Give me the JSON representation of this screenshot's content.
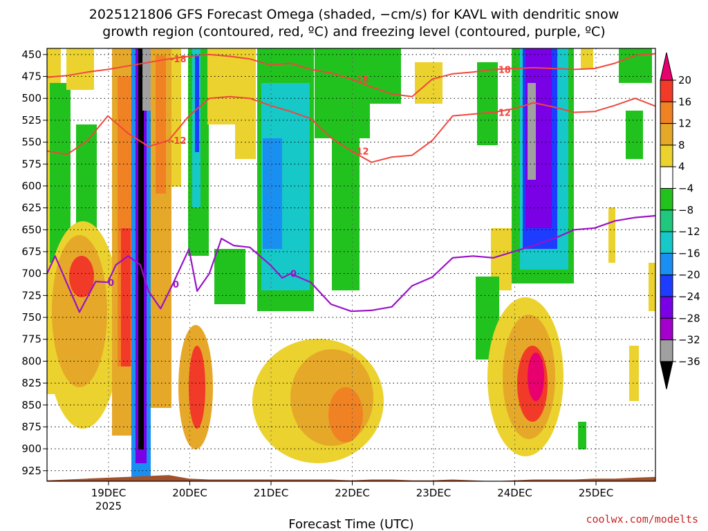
{
  "chart_data": {
    "type": "heatmap",
    "title": "2025121806 GFS Forecast Omega (shaded, −cm/s) for KAVL with dendritic snow",
    "subtitle": "growth region (contoured, red, ºC) and freezing level (contoured, purple, ºC)",
    "xlabel": "Forecast Time (UTC)",
    "ylabel": "",
    "credit": "coolwx.com/modelts",
    "x_ticks": [
      {
        "label": "19DEC",
        "sub": "2025"
      },
      {
        "label": "20DEC",
        "sub": ""
      },
      {
        "label": "21DEC",
        "sub": ""
      },
      {
        "label": "22DEC",
        "sub": ""
      },
      {
        "label": "23DEC",
        "sub": ""
      },
      {
        "label": "24DEC",
        "sub": ""
      },
      {
        "label": "25DEC",
        "sub": ""
      }
    ],
    "y_ticks": [
      "450",
      "475",
      "500",
      "525",
      "550",
      "575",
      "600",
      "625",
      "650",
      "675",
      "700",
      "725",
      "750",
      "775",
      "800",
      "825",
      "850",
      "875",
      "900",
      "925"
    ],
    "ylim": [
      937,
      443
    ],
    "grid": true,
    "colorbar": {
      "labels": [
        "20",
        "16",
        "12",
        "8",
        "4",
        "−4",
        "−8",
        "−12",
        "−16",
        "−20",
        "−24",
        "−28",
        "−32",
        "−36"
      ],
      "colors": [
        "#e8006e",
        "#f23a28",
        "#f08224",
        "#e6a829",
        "#ebd22e",
        "#ffffff",
        "#22c21e",
        "#1fc87c",
        "#16c8c8",
        "#1a8ff2",
        "#1e3cff",
        "#7a00e6",
        "#a300cc",
        "#a0a0a0",
        "#000000"
      ]
    },
    "contours": {
      "dgz_red": [
        {
          "level": -18,
          "label": "-18",
          "x": [
            0,
            0.25,
            0.5,
            0.75,
            1.0,
            1.25,
            1.5,
            1.75,
            2.0,
            2.25,
            2.5,
            2.75,
            3.0,
            3.25,
            3.5,
            3.75,
            4.0,
            4.25,
            4.5,
            4.75,
            5.0,
            5.25,
            5.5,
            5.75,
            6.0,
            6.25,
            6.5,
            6.75,
            7.0,
            7.25,
            7.5
          ],
          "p": [
            476,
            474,
            470,
            467,
            463,
            459,
            455,
            452,
            450,
            452,
            455,
            462,
            460,
            467,
            471,
            478,
            487,
            495,
            498,
            478,
            472,
            470,
            467,
            466,
            465,
            466,
            467,
            466,
            460,
            451,
            449
          ]
        },
        {
          "level": -12,
          "label": "-12",
          "x": [
            0,
            0.25,
            0.5,
            0.75,
            1.0,
            1.25,
            1.5,
            1.75,
            2.0,
            2.25,
            2.5,
            2.75,
            3.0,
            3.25,
            3.5,
            3.75,
            4.0,
            4.25,
            4.5,
            4.75,
            5.0,
            5.25,
            5.5,
            5.75,
            6.0,
            6.25,
            6.5,
            6.75,
            7.0,
            7.25,
            7.5
          ],
          "p": [
            560,
            564,
            548,
            520,
            540,
            555,
            548,
            520,
            500,
            498,
            500,
            508,
            515,
            523,
            545,
            560,
            573,
            567,
            565,
            548,
            520,
            518,
            516,
            512,
            505,
            510,
            516,
            515,
            508,
            500,
            509
          ]
        }
      ],
      "freezing_purple": {
        "level": 0,
        "label": "0",
        "x": [
          0,
          0.1,
          0.25,
          0.4,
          0.6,
          0.75,
          0.85,
          1.0,
          1.15,
          1.25,
          1.4,
          1.55,
          1.75,
          1.85,
          2.0,
          2.15,
          2.3,
          2.5,
          2.75,
          2.9,
          3.0,
          3.25,
          3.5,
          3.75,
          4.0,
          4.25,
          4.5,
          4.75,
          5.0,
          5.25,
          5.5,
          5.75,
          6.0,
          6.25,
          6.5,
          6.75,
          7.0,
          7.25,
          7.5
        ],
        "p": [
          700,
          680,
          712,
          744,
          709,
          710,
          690,
          680,
          690,
          720,
          740,
          712,
          672,
          720,
          700,
          660,
          668,
          670,
          690,
          705,
          700,
          710,
          735,
          743,
          742,
          738,
          714,
          704,
          682,
          680,
          682,
          675,
          668,
          660,
          650,
          648,
          640,
          636,
          634
        ]
      }
    },
    "terrain_top_p": [
      936,
      935,
      934,
      933,
      932,
      931,
      930,
      934,
      935,
      935,
      935,
      935,
      935,
      935,
      935,
      936,
      935,
      935,
      936,
      936,
      935,
      936,
      937,
      936,
      935,
      935,
      935,
      934,
      934,
      933,
      932
    ]
  }
}
